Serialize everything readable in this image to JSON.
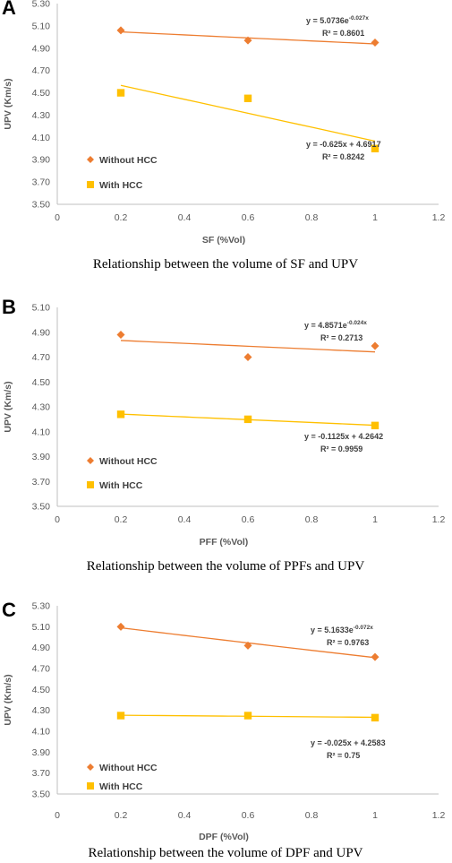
{
  "colors": {
    "without_hcc": "#ED7D31",
    "with_hcc": "#FFC000",
    "axis": "#BFBFBF"
  },
  "chart_data": [
    {
      "type": "scatter",
      "panel": "A",
      "caption": "Relationship between the volume of SF and UPV",
      "xlabel": "SF (%Vol)",
      "ylabel": "UPV (Km/s)",
      "xlim": [
        0,
        1.2
      ],
      "ylim": [
        3.5,
        5.3
      ],
      "xticks": [
        "0",
        "0.2",
        "0.4",
        "0.6",
        "0.8",
        "1",
        "1.2"
      ],
      "yticks": [
        "3.50",
        "3.70",
        "3.90",
        "4.10",
        "4.30",
        "4.50",
        "4.70",
        "4.90",
        "5.10",
        "5.30"
      ],
      "series": [
        {
          "name": "Without HCC",
          "x": [
            0.2,
            0.6,
            1.0
          ],
          "y": [
            5.06,
            4.97,
            4.95
          ],
          "trend": {
            "type": "exp",
            "a": 5.0736,
            "b": -0.027
          },
          "eq_base": "y = 5.0736e",
          "eq_exp": "-0.027x",
          "r2": "R² = 0.8601"
        },
        {
          "name": "With HCC",
          "x": [
            0.2,
            0.6,
            1.0
          ],
          "y": [
            4.5,
            4.45,
            4.0
          ],
          "trend": {
            "type": "linear",
            "m": -0.625,
            "c": 4.6917
          },
          "eq_base": "y = -0.625x + 4.6917",
          "eq_exp": "",
          "r2": "R² = 0.8242"
        }
      ],
      "legend_placement": "bottom-left"
    },
    {
      "type": "scatter",
      "panel": "B",
      "caption": "Relationship between the volume of PPFs and UPV",
      "xlabel": "PFF (%Vol)",
      "ylabel": "UPV (Km/s)",
      "xlim": [
        0,
        1.2
      ],
      "ylim": [
        3.5,
        5.1
      ],
      "xticks": [
        "0",
        "0.2",
        "0.4",
        "0.6",
        "0.8",
        "1",
        "1.2"
      ],
      "yticks": [
        "3.50",
        "3.70",
        "3.90",
        "4.10",
        "4.30",
        "4.50",
        "4.70",
        "4.90",
        "5.10"
      ],
      "series": [
        {
          "name": "Without HCC",
          "x": [
            0.2,
            0.6,
            1.0
          ],
          "y": [
            4.88,
            4.7,
            4.79
          ],
          "trend": {
            "type": "exp",
            "a": 4.8571,
            "b": -0.024
          },
          "eq_base": "y = 4.8571e",
          "eq_exp": "-0.024x",
          "r2": "R² = 0.2713"
        },
        {
          "name": "With HCC",
          "x": [
            0.2,
            0.6,
            1.0
          ],
          "y": [
            4.24,
            4.2,
            4.15
          ],
          "trend": {
            "type": "linear",
            "m": -0.1125,
            "c": 4.2642
          },
          "eq_base": "y = -0.1125x + 4.2642",
          "eq_exp": "",
          "r2": "R² = 0.9959"
        }
      ],
      "legend_placement": "bottom-left"
    },
    {
      "type": "scatter",
      "panel": "C",
      "caption": "Relationship between the volume of DPF and UPV",
      "xlabel": "DPF (%Vol)",
      "ylabel": "UPV (Km/s)",
      "xlim": [
        0,
        1.2
      ],
      "ylim": [
        3.5,
        5.3
      ],
      "xticks": [
        "0",
        "0.2",
        "0.4",
        "0.6",
        "0.8",
        "1",
        "1.2"
      ],
      "yticks": [
        "3.50",
        "3.70",
        "3.90",
        "4.10",
        "4.30",
        "4.50",
        "4.70",
        "4.90",
        "5.10",
        "5.30"
      ],
      "series": [
        {
          "name": "Without HCC",
          "x": [
            0.2,
            0.6,
            1.0
          ],
          "y": [
            5.1,
            4.92,
            4.81
          ],
          "trend": {
            "type": "exp",
            "a": 5.1633,
            "b": -0.072
          },
          "eq_base": "y = 5.1633e",
          "eq_exp": "-0.072x",
          "r2": "R² = 0.9763"
        },
        {
          "name": "With HCC",
          "x": [
            0.2,
            0.6,
            1.0
          ],
          "y": [
            4.25,
            4.25,
            4.23
          ],
          "trend": {
            "type": "linear",
            "m": -0.025,
            "c": 4.2583
          },
          "eq_base": "y = -0.025x + 4.2583",
          "eq_exp": "",
          "r2": "R² = 0.75"
        }
      ],
      "legend_placement": "bottom-left"
    }
  ]
}
